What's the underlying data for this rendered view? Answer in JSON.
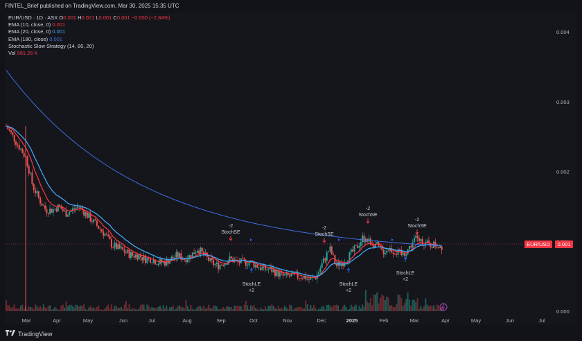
{
  "header": {
    "author": "FINTEL_Brief published on TradingView.com, Mar 30, 2025 15:35 UTC"
  },
  "legend": {
    "symbol": "EUR/USD · 1D · ASX",
    "o_label": "O",
    "o_val": "0.001",
    "h_label": "H",
    "h_val": "0.001",
    "l_label": "L",
    "l_val": "0.001",
    "c_label": "C",
    "c_val": "0.001",
    "change": "−0.000 (−2.84%)",
    "ema10_label": "EMA (10, close, 0)",
    "ema10_val": "0.001",
    "ema20_label": "EMA (20, close, 0)",
    "ema20_val": "0.001",
    "ema180_label": "EMA (180, close)",
    "ema180_val": "0.001",
    "strategy_label": "Stochastic Slow Strategy (14, 80, 20)",
    "vol_label": "Vol",
    "vol_val": "981.26 K"
  },
  "price_tag": {
    "symbol": "EUR/USD",
    "value": "0.001"
  },
  "footer": {
    "brand": "TradingView"
  },
  "colors": {
    "up": "#26a69a",
    "down": "#ef5350",
    "ema10": "#f23645",
    "ema20": "#42a5f5",
    "ema180": "#3f6fe0",
    "signal_up": "#2962ff",
    "signal_down": "#f23645"
  },
  "chart_data": {
    "type": "candlestick",
    "y_axis": {
      "ticks": [
        "0.004",
        "0.003",
        "0.002",
        "0.001",
        "0.000"
      ]
    },
    "x_axis": {
      "ticks": [
        "Mar",
        "Apr",
        "May",
        "Jun",
        "Jul",
        "Aug",
        "Sep",
        "Oct",
        "Nov",
        "Dec",
        "2025",
        "Feb",
        "Mar",
        "Apr",
        "May",
        "Jun",
        "Jul"
      ]
    },
    "annotations": [
      {
        "label": "-2",
        "text": "StochSE",
        "type": "short"
      },
      {
        "label": "-2",
        "text": "StochSE",
        "type": "short"
      },
      {
        "label": "-2",
        "text": "StochSE",
        "type": "short"
      },
      {
        "label": "-2",
        "text": "StochSE",
        "type": "short"
      },
      {
        "label": "+2",
        "text": "StochLE",
        "type": "long"
      },
      {
        "label": "+2",
        "text": "StochLE",
        "type": "long"
      },
      {
        "label": "+2",
        "text": "StochLE",
        "type": "long"
      }
    ],
    "close_estimates": [
      0.00265,
      0.0025,
      0.00235,
      0.0022,
      0.0018,
      0.0016,
      0.00145,
      0.00145,
      0.0015,
      0.0014,
      0.00145,
      0.0015,
      0.0014,
      0.0013,
      0.0012,
      0.0011,
      0.00095,
      0.0009,
      0.00085,
      0.0008,
      0.0008,
      0.00075,
      0.00075,
      0.0007,
      0.0007,
      0.00075,
      0.0008,
      0.00075,
      0.0008,
      0.0009,
      0.0008,
      0.0007,
      0.00065,
      0.0007,
      0.00075,
      0.0007,
      0.0007,
      0.0007,
      0.00065,
      0.0006,
      0.0006,
      0.00055,
      0.0005,
      0.0005,
      0.0005,
      0.0005,
      0.00045,
      0.0005,
      0.0007,
      0.0009,
      0.00065,
      0.0007,
      0.0008,
      0.0009,
      0.00105,
      0.001,
      0.00095,
      0.00085,
      0.0009,
      0.00085,
      0.0008,
      0.0009,
      0.00105,
      0.001,
      0.00095,
      0.00095,
      0.00093
    ]
  }
}
